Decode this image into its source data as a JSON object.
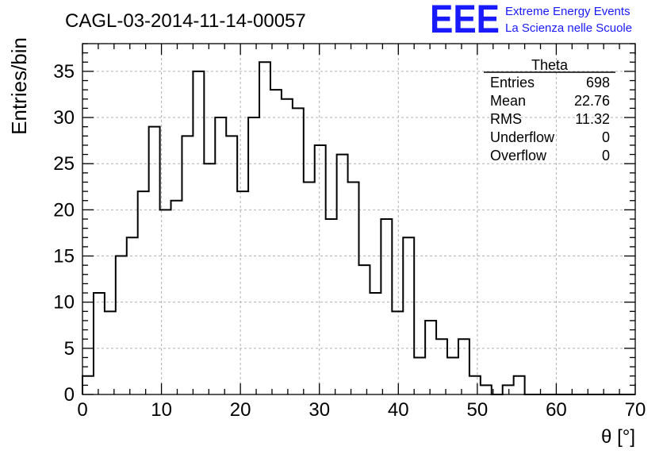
{
  "title": "CAGL-03-2014-11-14-00057",
  "logo": {
    "letters": "EEE",
    "line1": "Extreme Energy Events",
    "line2": "La Scienza nelle Scuole",
    "color": "#1a1aff"
  },
  "stats": {
    "title": "Theta",
    "rows": [
      {
        "label": "Entries",
        "value": "698"
      },
      {
        "label": "Mean",
        "value": "22.76"
      },
      {
        "label": "RMS",
        "value": "11.32"
      },
      {
        "label": "Underflow",
        "value": "0"
      },
      {
        "label": "Overflow",
        "value": "0"
      }
    ]
  },
  "chart_data": {
    "type": "bar",
    "histogram": true,
    "xlabel": "θ [°]",
    "ylabel": "Entries/bin",
    "xlim": [
      0,
      70
    ],
    "ylim": [
      0,
      38
    ],
    "xticks": [
      0,
      10,
      20,
      30,
      40,
      50,
      60,
      70
    ],
    "yticks": [
      0,
      5,
      10,
      15,
      20,
      25,
      30,
      35
    ],
    "grid": true,
    "bin_width": 1.4,
    "bin_edges_start": 0,
    "values": [
      2,
      11,
      9,
      15,
      17,
      22,
      29,
      20,
      21,
      28,
      35,
      25,
      30,
      28,
      22,
      30,
      36,
      33,
      32,
      31,
      23,
      27,
      19,
      26,
      23,
      14,
      11,
      19,
      9,
      17,
      4,
      8,
      6,
      4,
      6,
      2,
      1,
      0,
      1,
      2,
      0,
      0,
      0,
      0,
      0,
      0,
      0,
      0,
      0,
      0
    ],
    "line_color": "#000000",
    "grid_color": "#b0b0b0"
  }
}
